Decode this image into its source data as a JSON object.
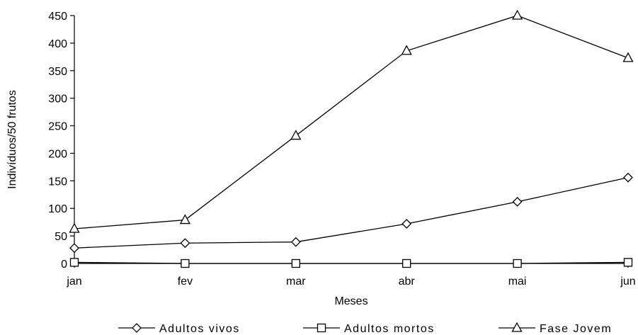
{
  "chart_data": {
    "type": "line",
    "categories": [
      "jan",
      "fev",
      "mar",
      "abr",
      "mai",
      "jun"
    ],
    "xlabel": "Meses",
    "ylabel": "Indivíduos/50 frutos",
    "ylim": [
      0,
      450
    ],
    "yticks": [
      0,
      50,
      100,
      150,
      200,
      250,
      300,
      350,
      400,
      450
    ],
    "grid": false,
    "legend_position": "bottom",
    "series": [
      {
        "name": "Adultos vivos",
        "marker": "diamond",
        "values": [
          28,
          37,
          39,
          72,
          112,
          156
        ]
      },
      {
        "name": "Adultos mortos",
        "marker": "square",
        "values": [
          2,
          0,
          0,
          0,
          0,
          2
        ]
      },
      {
        "name": "Fase Jovem",
        "marker": "triangle",
        "values": [
          63,
          79,
          232,
          386,
          450,
          373
        ]
      }
    ]
  }
}
